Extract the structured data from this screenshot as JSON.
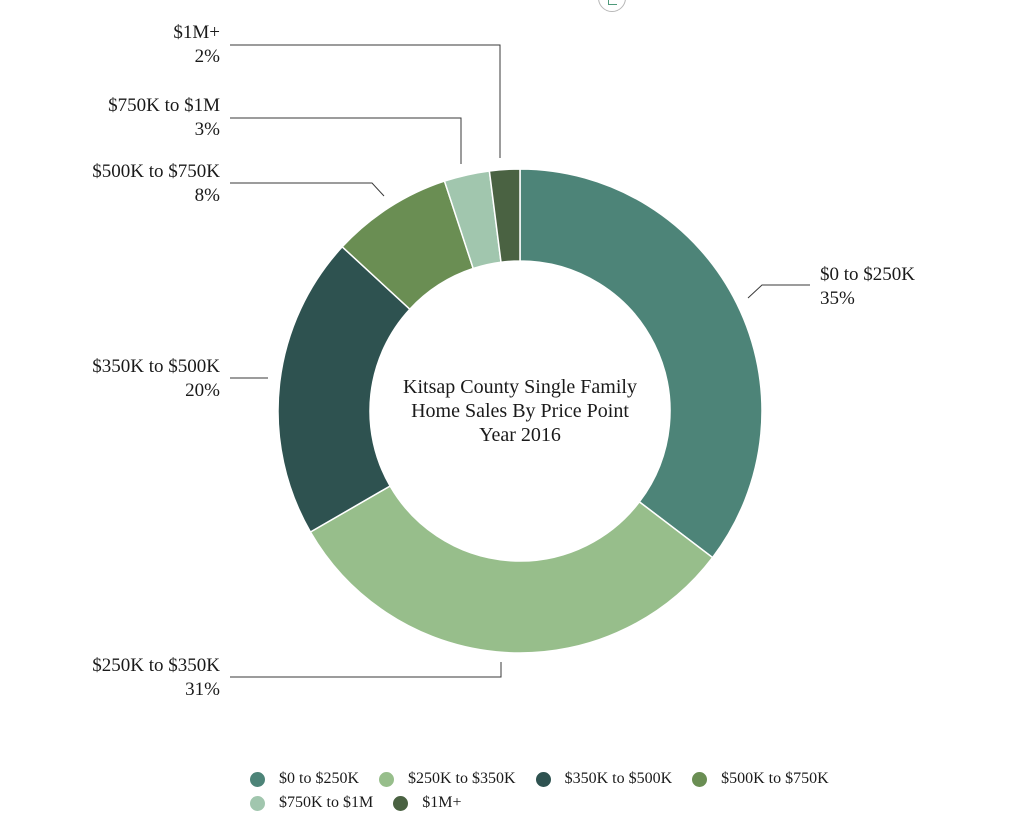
{
  "chart_data": {
    "type": "pie",
    "donut": true,
    "title_lines": [
      "Kitsap County Single Family",
      "Home Sales By Price Point",
      "Year 2016"
    ],
    "unit": "%",
    "start_angle_deg": 0,
    "direction": "clockwise",
    "slices": [
      {
        "label": "$0 to $250K",
        "value": 35,
        "display": "35%",
        "color": "#4d8478"
      },
      {
        "label": "$250K to $350K",
        "value": 31,
        "display": "31%",
        "color": "#97be8b"
      },
      {
        "label": "$350K to $500K",
        "value": 20,
        "display": "20%",
        "color": "#2e5250"
      },
      {
        "label": "$500K to $750K",
        "value": 8,
        "display": "8%",
        "color": "#6a8e53"
      },
      {
        "label": "$750K to $1M",
        "value": 3,
        "display": "3%",
        "color": "#a1c6ae"
      },
      {
        "label": "$1M+",
        "value": 2,
        "display": "2%",
        "color": "#4a6242"
      }
    ],
    "legend_position": "bottom"
  },
  "legend": {
    "rows": [
      [
        0,
        1,
        2,
        3
      ],
      [
        4,
        5
      ]
    ]
  }
}
